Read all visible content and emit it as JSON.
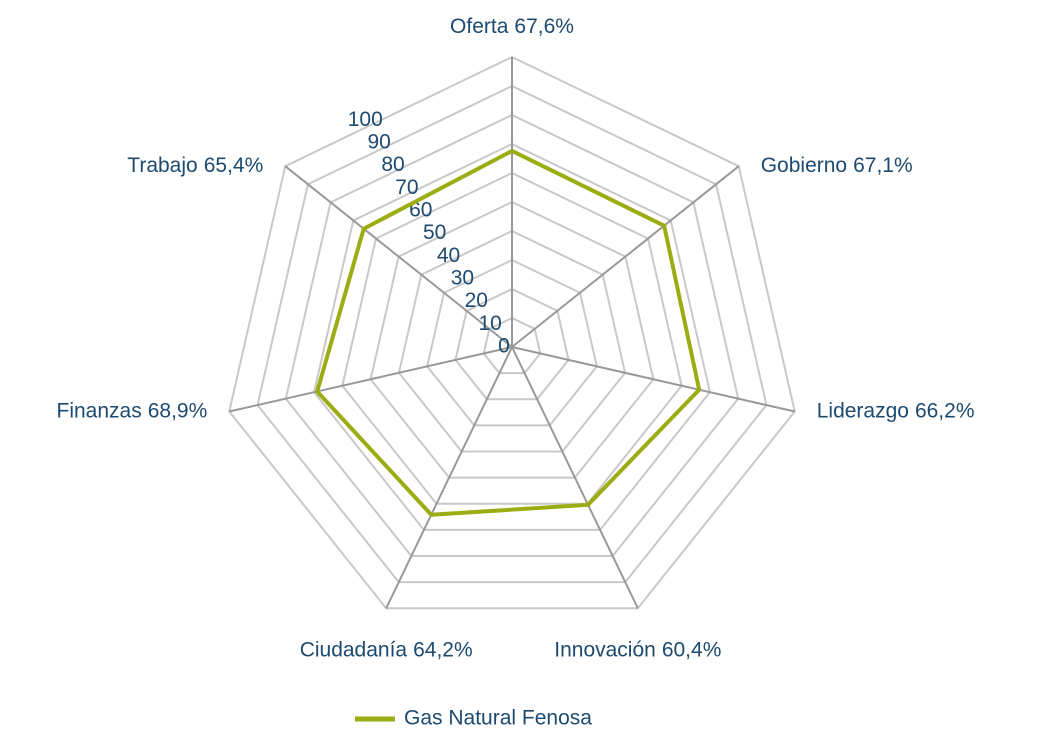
{
  "chart_data": {
    "type": "radar",
    "categories": [
      "Oferta",
      "Gobierno",
      "Liderazgo",
      "Innovación",
      "Ciudadanía",
      "Finanzas",
      "Trabajo"
    ],
    "series": [
      {
        "name": "Gas Natural Fenosa",
        "color": "#9bad12",
        "values": [
          67.6,
          67.1,
          66.2,
          60.4,
          64.2,
          68.9,
          65.4
        ],
        "value_labels": [
          "67,6%",
          "67,1%",
          "66,2%",
          "60,4%",
          "64,2%",
          "68,9%",
          "65,4%"
        ]
      }
    ],
    "ylim": [
      0,
      100
    ],
    "yticks": [
      0,
      10,
      20,
      30,
      40,
      50,
      60,
      70,
      80,
      90,
      100
    ],
    "grid": true,
    "legend": "bottom"
  }
}
